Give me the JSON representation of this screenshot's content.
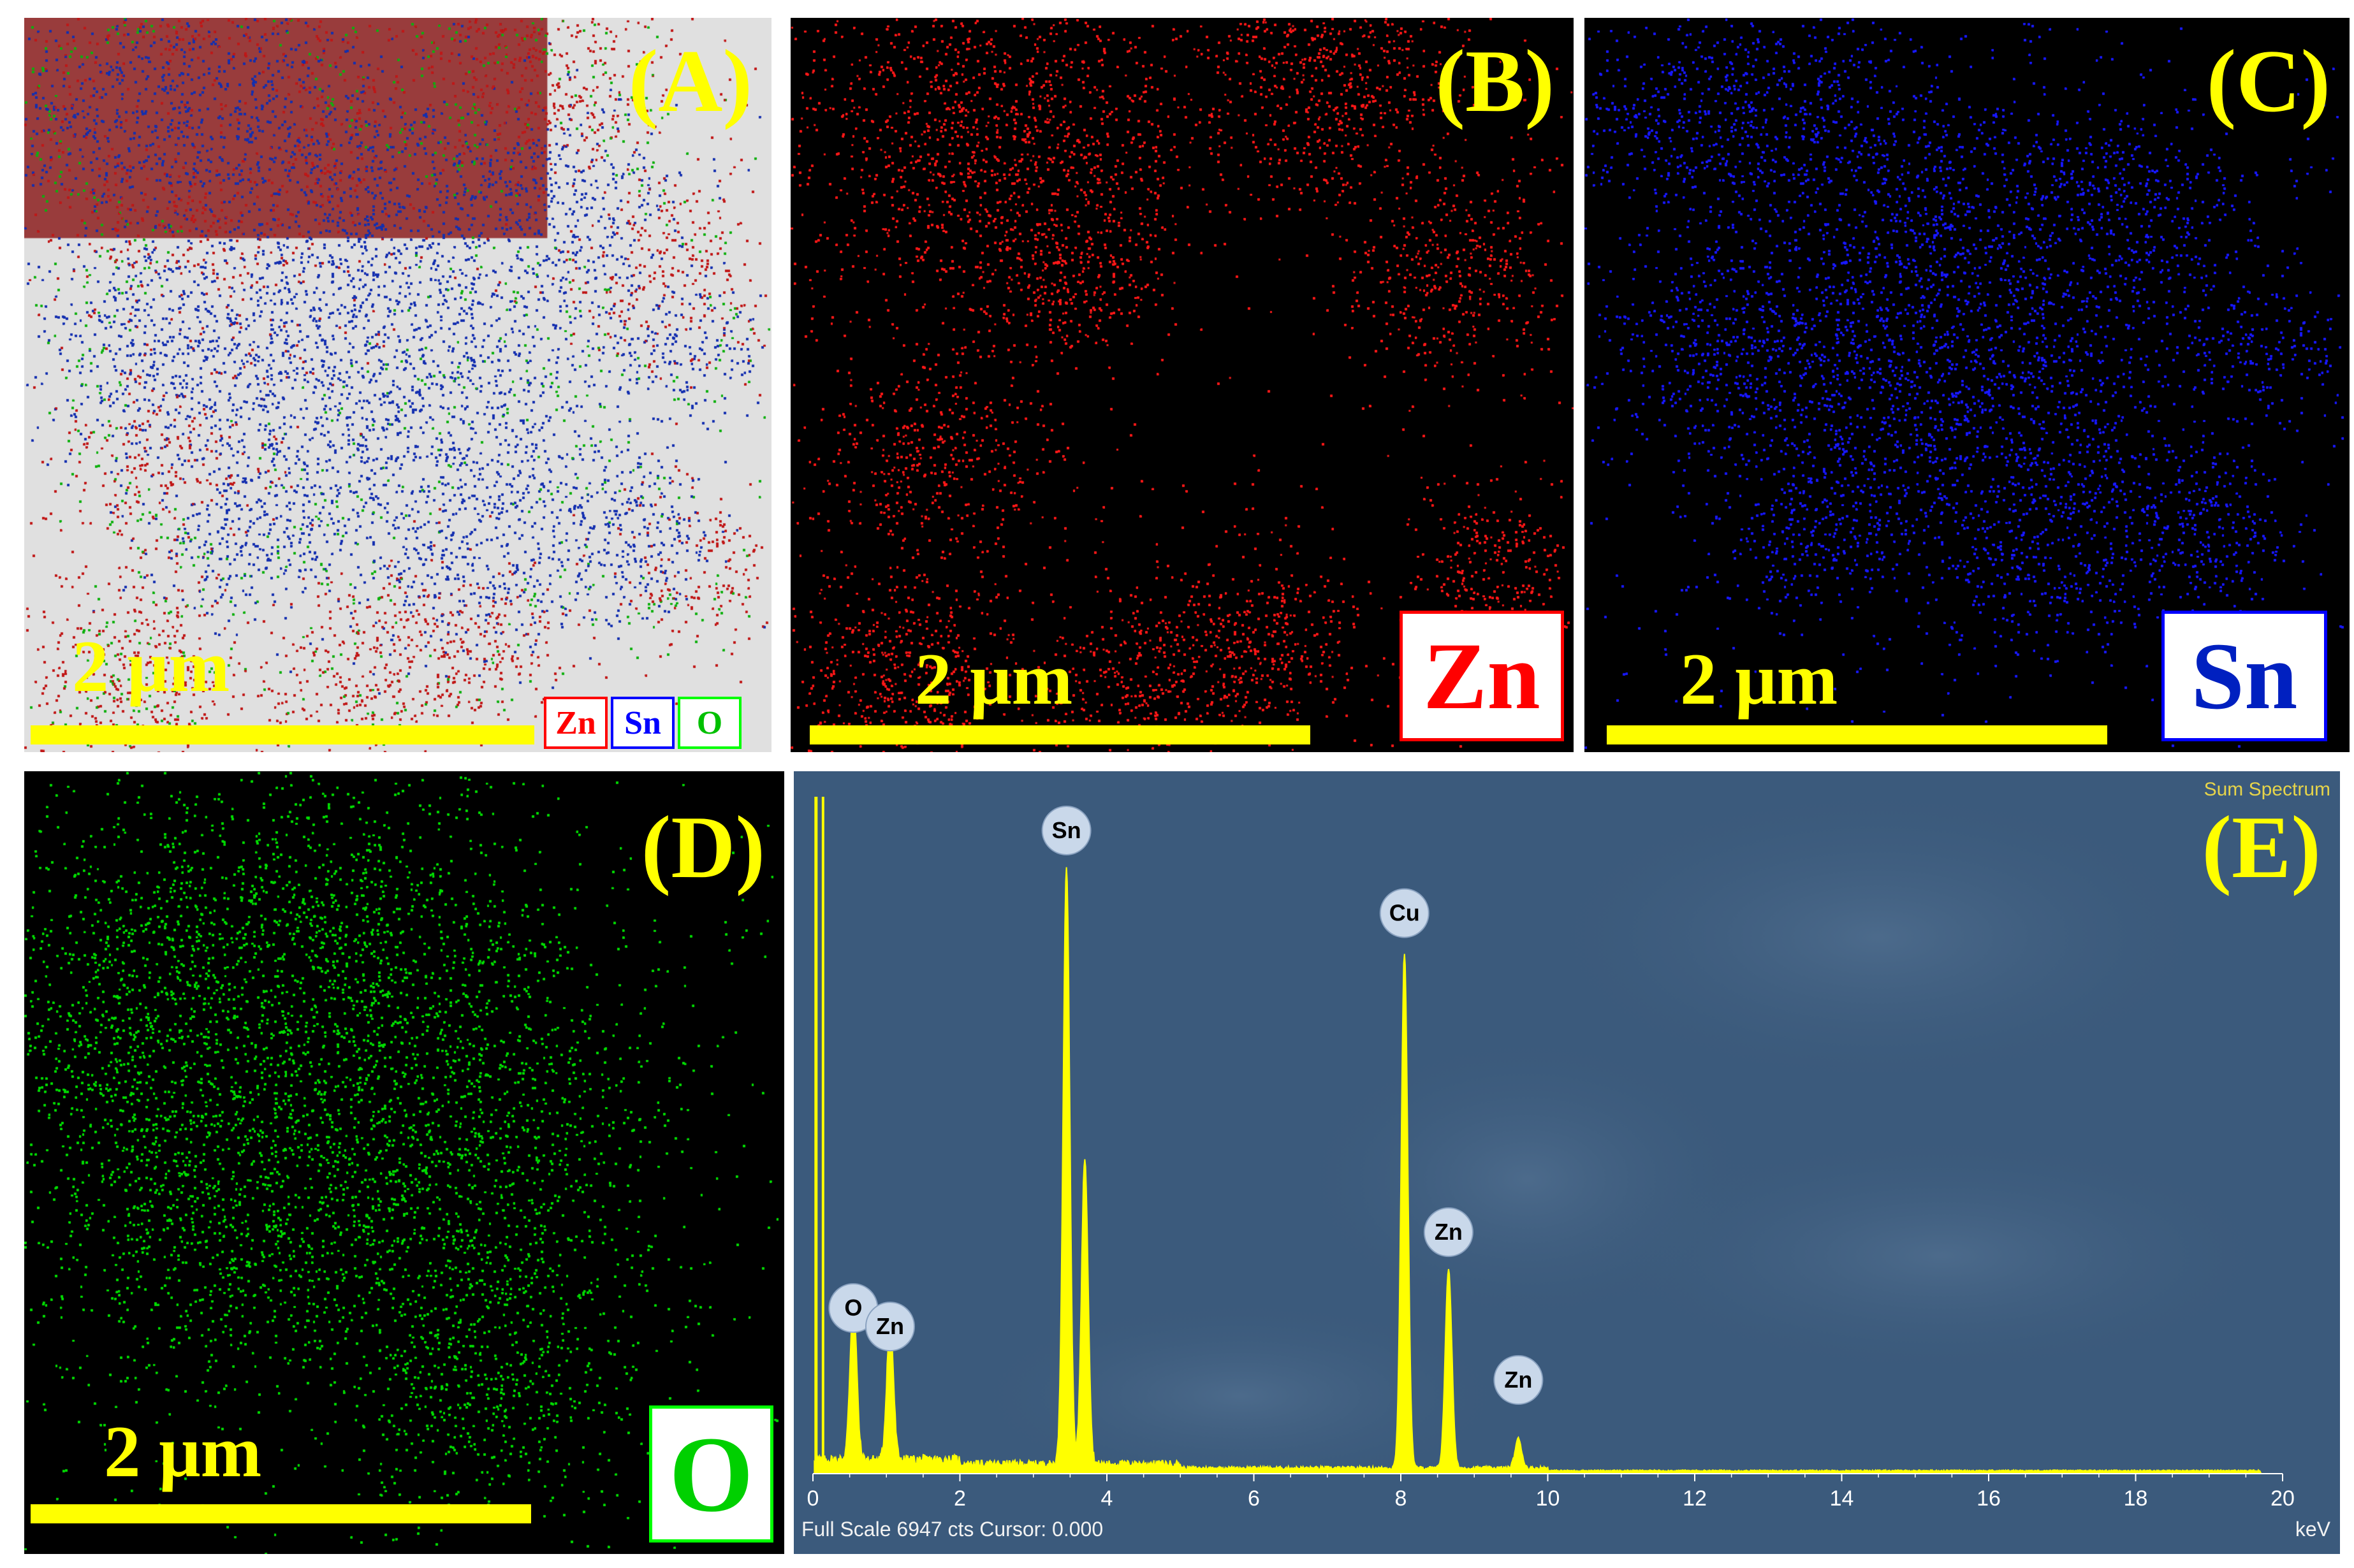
{
  "panels": {
    "a": {
      "label": "(A)",
      "scalebar": "2 μm",
      "legend": [
        {
          "text": "Zn",
          "color": "#ff0000"
        },
        {
          "text": "Sn",
          "color": "#0000ff"
        },
        {
          "text": "O",
          "color": "#00ff00"
        }
      ]
    },
    "b": {
      "label": "(B)",
      "scalebar": "2 μm",
      "element": "Zn",
      "color": "#ff1a1a"
    },
    "c": {
      "label": "(C)",
      "scalebar": "2 μm",
      "element": "Sn",
      "color": "#1a1aff"
    },
    "d": {
      "label": "(D)",
      "scalebar": "2 μm",
      "element": "O",
      "color": "#00dd00"
    },
    "e": {
      "label": "(E)"
    }
  },
  "chart_data": {
    "type": "line",
    "title": "Sum Spectrum",
    "xlabel": "keV",
    "xlim": [
      0,
      20
    ],
    "ylim": [
      0,
      6947
    ],
    "xticks": [
      "0",
      "2",
      "4",
      "6",
      "8",
      "10",
      "12",
      "14",
      "16",
      "18",
      "20"
    ],
    "footer": "Full Scale 6947 cts Cursor: 0.000",
    "line_color": "#ffff00",
    "peaks": [
      {
        "label": "O",
        "x": 0.55,
        "y": 1650
      },
      {
        "label": "Zn",
        "x": 1.05,
        "y": 1450
      },
      {
        "label": "Sn",
        "x": 3.45,
        "y": 6150
      },
      {
        "label": "Sn",
        "x": 3.7,
        "y": 3150
      },
      {
        "label": "Cu",
        "x": 8.05,
        "y": 5300
      },
      {
        "label": "Zn",
        "x": 8.65,
        "y": 2050
      },
      {
        "label": "Zn",
        "x": 9.6,
        "y": 300
      }
    ],
    "annotations": [
      {
        "text": "O",
        "x": 0.55
      },
      {
        "text": "Zn",
        "x": 1.05
      },
      {
        "text": "Sn",
        "x": 3.45
      },
      {
        "text": "Cu",
        "x": 8.05
      },
      {
        "text": "Zn",
        "x": 8.65
      },
      {
        "text": "Zn",
        "x": 9.6
      }
    ]
  }
}
